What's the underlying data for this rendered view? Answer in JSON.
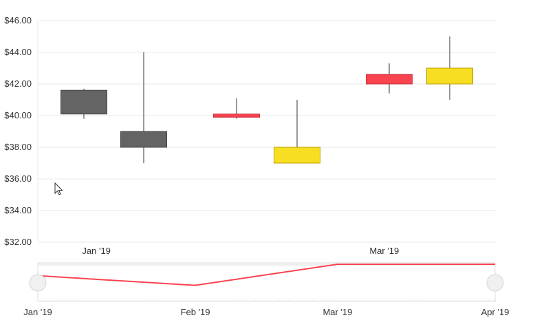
{
  "chart_data": {
    "type": "candlestick",
    "colors": {
      "down_filled": "#646464",
      "red_candle": "#f9434f",
      "yellow_candle": "#f8de22",
      "navigator_line": "#f9434f",
      "grid": "#e8e8e8",
      "handle": "#f0f0f0"
    },
    "yaxis": {
      "ticks": [
        "$32.00",
        "$34.00",
        "$36.00",
        "$38.00",
        "$40.00",
        "$42.00",
        "$44.00",
        "$46.00"
      ],
      "range": [
        32,
        46
      ]
    },
    "xaxis": {
      "ticks": [
        "Jan '19",
        "Mar '19"
      ],
      "range": [
        "2018-12-20",
        "2019-03-24"
      ]
    },
    "candles": [
      {
        "date": "2019-01-01",
        "open": 41.6,
        "high": 41.7,
        "low": 39.8,
        "close": 40.1,
        "color": "down_filled"
      },
      {
        "date": "2019-01-15",
        "open": 39.0,
        "high": 44.0,
        "low": 37.0,
        "close": 38.0,
        "color": "down_filled"
      },
      {
        "date": "2019-02-15",
        "open": 39.9,
        "high": 41.1,
        "low": 39.8,
        "close": 40.1,
        "color": "red_candle"
      },
      {
        "date": "2019-03-01",
        "open": 37.0,
        "high": 41.0,
        "low": 37.0,
        "close": 38.0,
        "color": "yellow_candle"
      },
      {
        "date": "2019-03-15",
        "open": 42.0,
        "high": 43.3,
        "low": 41.4,
        "close": 42.6,
        "color": "red_candle"
      },
      {
        "date": "2019-03-15",
        "open": 42.0,
        "high": 45.0,
        "low": 41.0,
        "close": 43.0,
        "color": "yellow_candle"
      }
    ],
    "navigator": {
      "ticks": [
        "Jan '19",
        "Feb '19",
        "Mar '19",
        "Apr '19"
      ],
      "range": [
        "2019-01-01",
        "2019-04-01"
      ],
      "series": [
        {
          "date": "2019-01-01",
          "value": 40.1
        },
        {
          "date": "2019-02-01",
          "value": 38.0
        },
        {
          "date": "2019-03-01",
          "value": 42.6
        },
        {
          "date": "2019-04-01",
          "value": 42.6
        }
      ]
    }
  }
}
